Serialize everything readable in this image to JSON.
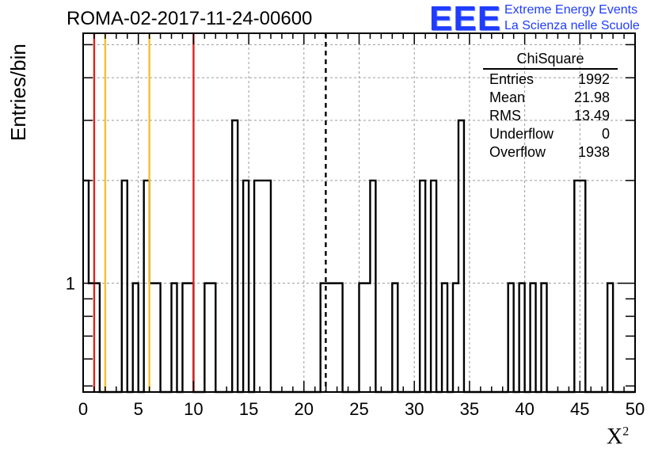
{
  "header": {
    "title": "ROMA-02-2017-11-24-00600",
    "logo_text": "EEE",
    "brand_line1": "Extreme Energy Events",
    "brand_line2": "La Scienza nelle Scuole"
  },
  "stats": {
    "name": "ChiSquare",
    "rows": [
      {
        "label": "Entries",
        "value": "1992"
      },
      {
        "label": "Mean",
        "value": "21.98"
      },
      {
        "label": "RMS",
        "value": "13.49"
      },
      {
        "label": "Underflow",
        "value": "0"
      },
      {
        "label": "Overflow",
        "value": "1938"
      }
    ]
  },
  "chart_data": {
    "type": "bar",
    "histogram": true,
    "xlabel": "X",
    "xlabel_superscript": "2",
    "ylabel": "Entries/bin",
    "xlim": [
      0,
      50
    ],
    "log_y": true,
    "ylim": [
      0.48,
      5.4
    ],
    "bin_width": 0.5,
    "x_ticks": [
      "0",
      "5",
      "10",
      "15",
      "20",
      "25",
      "30",
      "35",
      "40",
      "45",
      "50"
    ],
    "y_tick_labels": [
      {
        "value": 1,
        "label": "1"
      }
    ],
    "grid": true,
    "bins": [
      {
        "x": 0.0,
        "count": 2
      },
      {
        "x": 0.5,
        "count": 1
      },
      {
        "x": 1.0,
        "count": 1
      },
      {
        "x": 3.5,
        "count": 2
      },
      {
        "x": 4.5,
        "count": 1
      },
      {
        "x": 5.5,
        "count": 2
      },
      {
        "x": 6.0,
        "count": 1
      },
      {
        "x": 6.5,
        "count": 1
      },
      {
        "x": 8.0,
        "count": 1
      },
      {
        "x": 9.0,
        "count": 1
      },
      {
        "x": 9.5,
        "count": 1
      },
      {
        "x": 11.0,
        "count": 1
      },
      {
        "x": 11.5,
        "count": 1
      },
      {
        "x": 13.5,
        "count": 3
      },
      {
        "x": 14.5,
        "count": 2
      },
      {
        "x": 15.5,
        "count": 2
      },
      {
        "x": 16.0,
        "count": 2
      },
      {
        "x": 16.5,
        "count": 2
      },
      {
        "x": 21.5,
        "count": 1
      },
      {
        "x": 22.0,
        "count": 1
      },
      {
        "x": 22.5,
        "count": 1
      },
      {
        "x": 23.0,
        "count": 1
      },
      {
        "x": 25.0,
        "count": 1
      },
      {
        "x": 25.5,
        "count": 1
      },
      {
        "x": 26.0,
        "count": 2
      },
      {
        "x": 28.0,
        "count": 1
      },
      {
        "x": 30.5,
        "count": 2
      },
      {
        "x": 31.5,
        "count": 2
      },
      {
        "x": 32.5,
        "count": 1
      },
      {
        "x": 33.5,
        "count": 1
      },
      {
        "x": 34.0,
        "count": 3
      },
      {
        "x": 38.5,
        "count": 1
      },
      {
        "x": 39.5,
        "count": 1
      },
      {
        "x": 40.5,
        "count": 1
      },
      {
        "x": 41.5,
        "count": 1
      },
      {
        "x": 44.5,
        "count": 2
      },
      {
        "x": 45.0,
        "count": 2
      },
      {
        "x": 47.5,
        "count": 1
      }
    ],
    "markers": [
      {
        "x": 1,
        "color": "#dd2222",
        "style": "solid"
      },
      {
        "x": 2,
        "color": "#f2c12e",
        "style": "solid"
      },
      {
        "x": 6,
        "color": "#f2c12e",
        "style": "solid"
      },
      {
        "x": 10,
        "color": "#dd2222",
        "style": "solid"
      },
      {
        "x": 21.98,
        "color": "#000000",
        "style": "dashed"
      }
    ]
  }
}
